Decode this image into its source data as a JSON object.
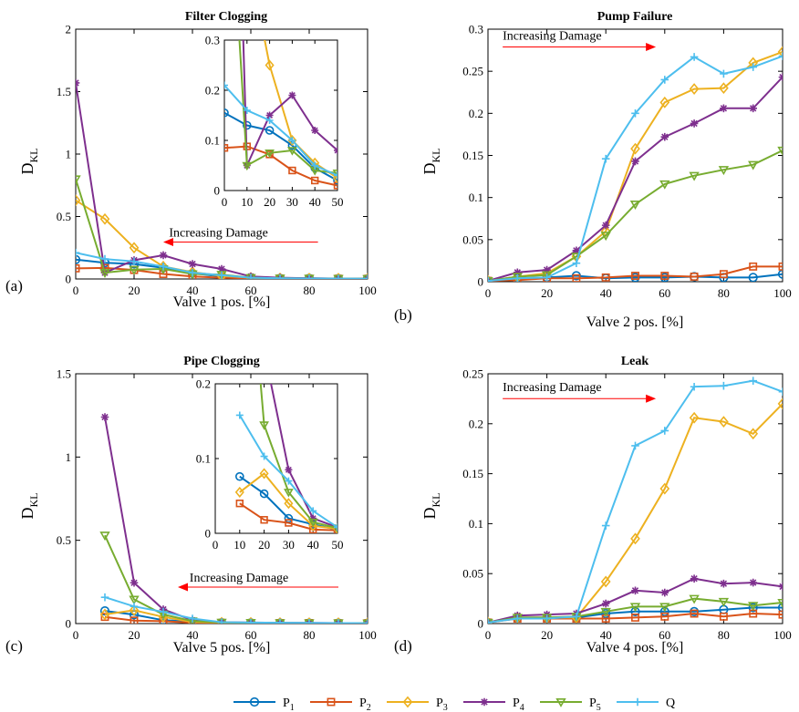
{
  "colors": {
    "P1": "#0072BD",
    "P2": "#D95319",
    "P3": "#EDB120",
    "P4": "#7E2F8E",
    "P5": "#77AC30",
    "Q": "#4DBEEE",
    "arrow": "#ff0000"
  },
  "legend": [
    {
      "key": "P1",
      "base": "P",
      "sub": "1",
      "marker": "circle"
    },
    {
      "key": "P2",
      "base": "P",
      "sub": "2",
      "marker": "square"
    },
    {
      "key": "P3",
      "base": "P",
      "sub": "3",
      "marker": "diamond"
    },
    {
      "key": "P4",
      "base": "P",
      "sub": "4",
      "marker": "asterisk"
    },
    {
      "key": "P5",
      "base": "P",
      "sub": "5",
      "marker": "triangle-down"
    },
    {
      "key": "Q",
      "base": "Q",
      "sub": "",
      "marker": "plus"
    }
  ],
  "chart_data": [
    {
      "type": "line",
      "panel_label": "(a)",
      "title": "Filter Clogging",
      "xlabel": "Valve 1 pos. [%]",
      "ylabel": "D",
      "ylabel_sub": "KL",
      "xlim": [
        0,
        100
      ],
      "ylim": [
        0,
        2
      ],
      "xticks": [
        0,
        20,
        40,
        60,
        80,
        100
      ],
      "yticks": [
        0,
        0.5,
        1,
        1.5,
        2
      ],
      "ytick_labels": [
        "0",
        "0.5",
        "1",
        "1.5",
        "2"
      ],
      "annotation": {
        "text": "Increasing Damage",
        "direction": "left",
        "x": 32,
        "y": 0.31,
        "arrow_from": 83,
        "arrow_to": 30
      },
      "x": [
        0,
        10,
        20,
        30,
        40,
        50,
        60,
        70,
        80,
        90,
        100
      ],
      "series": [
        {
          "key": "P1",
          "values": [
            0.155,
            0.13,
            0.12,
            0.09,
            0.045,
            0.02,
            0.01,
            0.005,
            0.005,
            0.003,
            0.002
          ]
        },
        {
          "key": "P2",
          "values": [
            0.085,
            0.088,
            0.072,
            0.04,
            0.02,
            0.01,
            0.005,
            0.003,
            0.002,
            0.002,
            0.001
          ]
        },
        {
          "key": "P3",
          "values": [
            0.63,
            0.48,
            0.25,
            0.1,
            0.055,
            0.025,
            0.01,
            0.005,
            0.004,
            0.003,
            0.002
          ]
        },
        {
          "key": "P4",
          "values": [
            1.57,
            0.05,
            0.15,
            0.19,
            0.12,
            0.08,
            0.02,
            0.01,
            0.005,
            0.004,
            0.003
          ]
        },
        {
          "key": "P5",
          "values": [
            0.8,
            0.05,
            0.075,
            0.08,
            0.04,
            0.035,
            0.01,
            0.005,
            0.004,
            0.003,
            0.002
          ]
        },
        {
          "key": "Q",
          "values": [
            0.21,
            0.16,
            0.14,
            0.1,
            0.05,
            0.03,
            0.01,
            0.005,
            0.004,
            0.003,
            0.002
          ]
        }
      ],
      "inset": {
        "xlim": [
          0,
          50
        ],
        "ylim": [
          0,
          0.3
        ],
        "xticks": [
          0,
          10,
          20,
          30,
          40,
          50
        ],
        "yticks": [
          0,
          0.1,
          0.2,
          0.3
        ],
        "ytick_labels": [
          "0",
          "0.1",
          "0.2",
          "0.3"
        ]
      }
    },
    {
      "type": "line",
      "panel_label": "(b)",
      "title": "Pump Failure",
      "xlabel": "Valve 2 pos. [%]",
      "ylabel": "D",
      "ylabel_sub": "KL",
      "xlim": [
        0,
        100
      ],
      "ylim": [
        0,
        0.3
      ],
      "xticks": [
        0,
        20,
        40,
        60,
        80,
        100
      ],
      "yticks": [
        0,
        0.05,
        0.1,
        0.15,
        0.2,
        0.25,
        0.3
      ],
      "ytick_labels": [
        "0",
        "0.05",
        "0.1",
        "0.15",
        "0.2",
        "0.25",
        "0.3"
      ],
      "annotation": {
        "text": "Increasing Damage",
        "direction": "right",
        "x": 5,
        "y": 0.281,
        "arrow_from": 5,
        "arrow_to": 57
      },
      "x": [
        0,
        10,
        20,
        30,
        40,
        50,
        60,
        70,
        80,
        90,
        100
      ],
      "series": [
        {
          "key": "P1",
          "values": [
            0.001,
            0.004,
            0.005,
            0.007,
            0.004,
            0.005,
            0.005,
            0.006,
            0.005,
            0.005,
            0.009
          ]
        },
        {
          "key": "P2",
          "values": [
            0.001,
            0.002,
            0.004,
            0.004,
            0.005,
            0.007,
            0.007,
            0.006,
            0.009,
            0.018,
            0.018
          ]
        },
        {
          "key": "P3",
          "values": [
            0.001,
            0.006,
            0.01,
            0.03,
            0.06,
            0.158,
            0.213,
            0.229,
            0.23,
            0.26,
            0.273
          ]
        },
        {
          "key": "P4",
          "values": [
            0.001,
            0.011,
            0.014,
            0.037,
            0.067,
            0.143,
            0.172,
            0.188,
            0.206,
            0.206,
            0.243
          ]
        },
        {
          "key": "P5",
          "values": [
            0.001,
            0.006,
            0.008,
            0.03,
            0.055,
            0.092,
            0.116,
            0.126,
            0.133,
            0.139,
            0.156
          ]
        },
        {
          "key": "Q",
          "values": [
            0.001,
            0.004,
            0.005,
            0.022,
            0.146,
            0.2,
            0.24,
            0.267,
            0.247,
            0.255,
            0.268
          ]
        }
      ]
    },
    {
      "type": "line",
      "panel_label": "(c)",
      "title": "Pipe Clogging",
      "xlabel": "Valve 5 pos. [%]",
      "ylabel": "D",
      "ylabel_sub": "KL",
      "xlim": [
        0,
        100
      ],
      "ylim": [
        0,
        1.5
      ],
      "xticks": [
        0,
        20,
        40,
        60,
        80,
        100
      ],
      "yticks": [
        0,
        0.5,
        1,
        1.5
      ],
      "ytick_labels": [
        "0",
        "0.5",
        "1",
        "1.5"
      ],
      "annotation": {
        "text": "Increasing Damage",
        "direction": "left",
        "x": 39,
        "y": 0.23,
        "arrow_from": 90,
        "arrow_to": 35
      },
      "x": [
        10,
        20,
        30,
        40,
        50,
        60,
        70,
        80,
        90,
        100
      ],
      "series": [
        {
          "key": "P1",
          "values": [
            0.076,
            0.053,
            0.02,
            0.012,
            0.005,
            0.004,
            0.003,
            0.003,
            0.003,
            0.002
          ]
        },
        {
          "key": "P2",
          "values": [
            0.04,
            0.018,
            0.014,
            0.005,
            0.004,
            0.003,
            0.003,
            0.003,
            0.002,
            0.002
          ]
        },
        {
          "key": "P3",
          "values": [
            0.055,
            0.08,
            0.04,
            0.01,
            0.006,
            0.005,
            0.004,
            0.003,
            0.003,
            0.002
          ]
        },
        {
          "key": "P4",
          "values": [
            1.24,
            0.245,
            0.085,
            0.02,
            0.008,
            0.006,
            0.005,
            0.004,
            0.003,
            0.002
          ]
        },
        {
          "key": "P5",
          "values": [
            0.53,
            0.145,
            0.055,
            0.015,
            0.007,
            0.005,
            0.004,
            0.003,
            0.003,
            0.002
          ]
        },
        {
          "key": "Q",
          "values": [
            0.158,
            0.103,
            0.07,
            0.03,
            0.008,
            0.006,
            0.005,
            0.004,
            0.003,
            0.002
          ]
        }
      ],
      "inset": {
        "xlim": [
          0,
          50
        ],
        "ylim": [
          0,
          0.2
        ],
        "xticks": [
          0,
          10,
          20,
          30,
          40,
          50
        ],
        "yticks": [
          0,
          0.1,
          0.2
        ],
        "ytick_labels": [
          "0",
          "0.1",
          "0.2"
        ]
      }
    },
    {
      "type": "line",
      "panel_label": "(d)",
      "title": "Leak",
      "xlabel": "Valve 4 pos. [%]",
      "ylabel": "D",
      "ylabel_sub": "KL",
      "xlim": [
        0,
        100
      ],
      "ylim": [
        0,
        0.25
      ],
      "xticks": [
        0,
        20,
        40,
        60,
        80,
        100
      ],
      "yticks": [
        0,
        0.05,
        0.1,
        0.15,
        0.2,
        0.25
      ],
      "ytick_labels": [
        "0",
        "0.05",
        "0.1",
        "0.15",
        "0.2",
        "0.25"
      ],
      "annotation": {
        "text": "Increasing Damage",
        "direction": "right",
        "x": 5,
        "y": 0.227,
        "arrow_from": 5,
        "arrow_to": 57
      },
      "x": [
        0,
        10,
        20,
        30,
        40,
        50,
        60,
        70,
        80,
        90,
        100
      ],
      "series": [
        {
          "key": "P1",
          "values": [
            0.001,
            0.006,
            0.006,
            0.006,
            0.01,
            0.012,
            0.012,
            0.012,
            0.014,
            0.016,
            0.016
          ]
        },
        {
          "key": "P2",
          "values": [
            0.001,
            0.005,
            0.005,
            0.005,
            0.005,
            0.006,
            0.007,
            0.01,
            0.007,
            0.01,
            0.009
          ]
        },
        {
          "key": "P3",
          "values": [
            0.001,
            0.006,
            0.006,
            0.006,
            0.042,
            0.085,
            0.135,
            0.206,
            0.202,
            0.19,
            0.22
          ]
        },
        {
          "key": "P4",
          "values": [
            0.001,
            0.008,
            0.009,
            0.01,
            0.02,
            0.033,
            0.031,
            0.045,
            0.04,
            0.041,
            0.037
          ]
        },
        {
          "key": "P5",
          "values": [
            0.001,
            0.006,
            0.006,
            0.007,
            0.012,
            0.017,
            0.017,
            0.025,
            0.022,
            0.018,
            0.021
          ]
        },
        {
          "key": "Q",
          "values": [
            0.001,
            0.005,
            0.005,
            0.007,
            0.098,
            0.178,
            0.193,
            0.237,
            0.238,
            0.243,
            0.232
          ]
        }
      ]
    }
  ]
}
